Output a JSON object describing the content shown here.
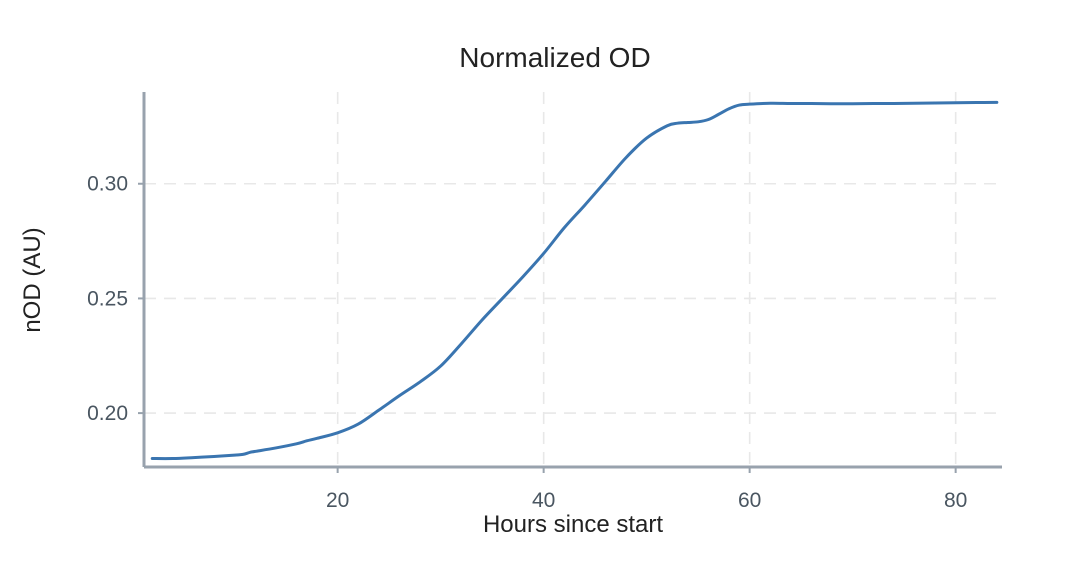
{
  "chart_data": {
    "type": "line",
    "title": "Normalized OD",
    "xlabel": "Hours since start",
    "ylabel": "nOD (AU)",
    "xlim": [
      1.2,
      84.5
    ],
    "ylim": [
      0.1765,
      0.34
    ],
    "xticks": [
      20,
      40,
      60,
      80
    ],
    "yticks": [
      0.2,
      0.25,
      0.3
    ],
    "xtick_labels": [
      "20",
      "40",
      "60",
      "80"
    ],
    "ytick_labels": [
      "0.20",
      "0.25",
      "0.30"
    ],
    "grid": true,
    "line_color": "#3a75b0",
    "series": [
      {
        "x": [
          2,
          4,
          6,
          8,
          10,
          10.8,
          11.5,
          12,
          14,
          16,
          17,
          18,
          20,
          22,
          24,
          26,
          28,
          30,
          32,
          34,
          36,
          38,
          40,
          42,
          44,
          46,
          48,
          50,
          52,
          53,
          54,
          55,
          56,
          57,
          58,
          59,
          60,
          62,
          64,
          66,
          68,
          70,
          72,
          74,
          76,
          78,
          80,
          82,
          84
        ],
        "y": [
          0.1802,
          0.1802,
          0.1806,
          0.1811,
          0.1817,
          0.182,
          0.1829,
          0.1833,
          0.1848,
          0.1866,
          0.1879,
          0.189,
          0.1914,
          0.1952,
          0.2013,
          0.2076,
          0.2136,
          0.2205,
          0.2302,
          0.2405,
          0.25,
          0.2595,
          0.2696,
          0.2808,
          0.2907,
          0.301,
          0.3114,
          0.3199,
          0.3253,
          0.3264,
          0.3267,
          0.327,
          0.328,
          0.3303,
          0.3327,
          0.3343,
          0.3347,
          0.3351,
          0.335,
          0.335,
          0.3349,
          0.3349,
          0.335,
          0.335,
          0.3351,
          0.3352,
          0.3353,
          0.3354,
          0.3355
        ]
      }
    ]
  }
}
